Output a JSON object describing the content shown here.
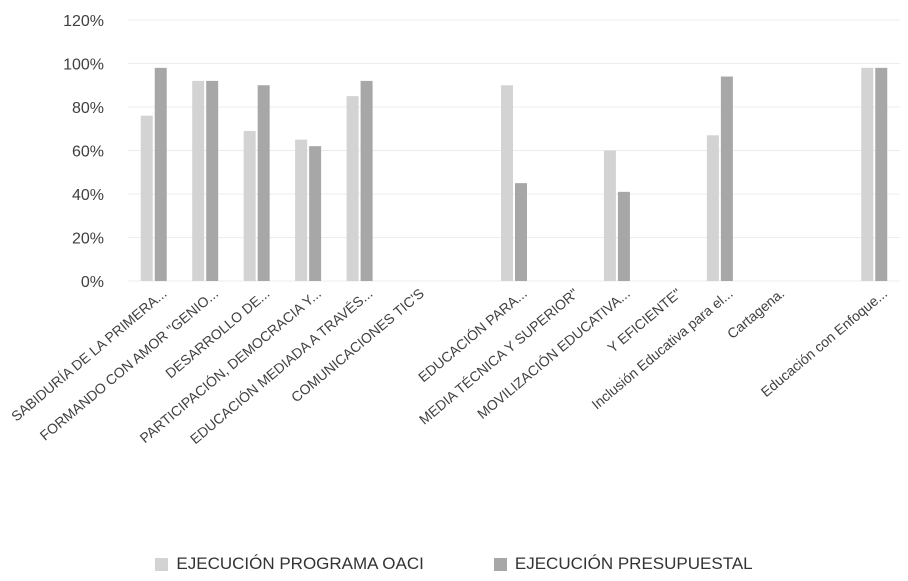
{
  "colors": {
    "series1": "#d3d3d3",
    "series2": "#a7a7a7",
    "gridline": "#ececec",
    "text": "#404040"
  },
  "chart_data": {
    "type": "bar",
    "categories": [
      "SABIDURÍA DE LA PRIMERA...",
      "FORMANDO CON AMOR \"GENIO...",
      "DESARROLLO DE...",
      "PARTICIPACIÓN, DEMOCRACIA Y...",
      "EDUCACIÓN MEDIADA A TRAVÉS...",
      "COMUNICACIONES TIC'S",
      "",
      "EDUCACIÓN PARA...",
      "MEDIA TÉCNICA Y SUPERIOR\"",
      "MOVILIZACIÓN EDUCATIVA...",
      "Y EFICIENTE\"",
      "Inclusión Educativa para el...",
      "Cartagena.",
      "",
      "Educación con Enfoque..."
    ],
    "series": [
      {
        "name": "EJECUCIÓN PROGRAMA OACI",
        "values": [
          0.76,
          0.92,
          0.69,
          0.65,
          0.85,
          null,
          null,
          0.9,
          null,
          0.6,
          null,
          0.67,
          null,
          null,
          0.98
        ]
      },
      {
        "name": "EJECUCIÓN PRESUPUESTAL",
        "values": [
          0.98,
          0.92,
          0.9,
          0.62,
          0.92,
          null,
          null,
          0.45,
          null,
          0.41,
          null,
          0.94,
          null,
          null,
          0.98
        ]
      }
    ],
    "ylim": [
      0,
      1.2
    ],
    "yticks": [
      "0%",
      "20%",
      "40%",
      "60%",
      "80%",
      "100%",
      "120%"
    ],
    "grid": true,
    "legend_position": "bottom"
  }
}
